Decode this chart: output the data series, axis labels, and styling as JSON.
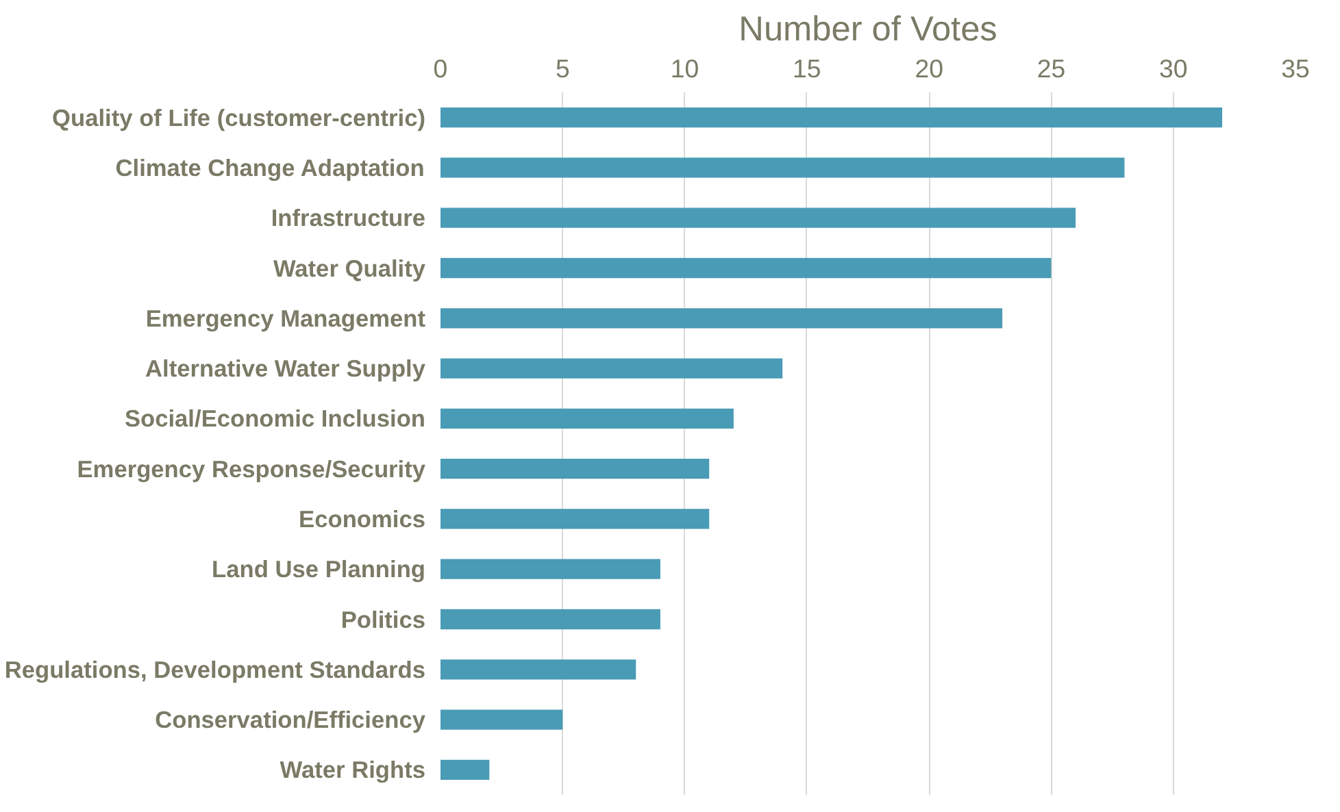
{
  "chart_data": {
    "type": "bar",
    "orientation": "horizontal",
    "title": "Number of Votes",
    "categories": [
      "Quality of Life (customer-centric)",
      "Climate Change Adaptation",
      "Infrastructure",
      "Water Quality",
      "Emergency Management",
      "Alternative Water Supply",
      "Social/Economic Inclusion",
      "Emergency Response/Security",
      "Economics",
      "Land Use Planning",
      "Politics",
      "Regulations, Development Standards",
      "Conservation/Efficiency",
      "Water Rights"
    ],
    "values": [
      32,
      28,
      26,
      25,
      23,
      14,
      12,
      11,
      11,
      9,
      9,
      8,
      5,
      2
    ],
    "color": "#4a9bb5",
    "xlim": [
      0,
      35
    ],
    "xticks": [
      0,
      5,
      10,
      15,
      20,
      25,
      30,
      35
    ],
    "grid": "x"
  }
}
